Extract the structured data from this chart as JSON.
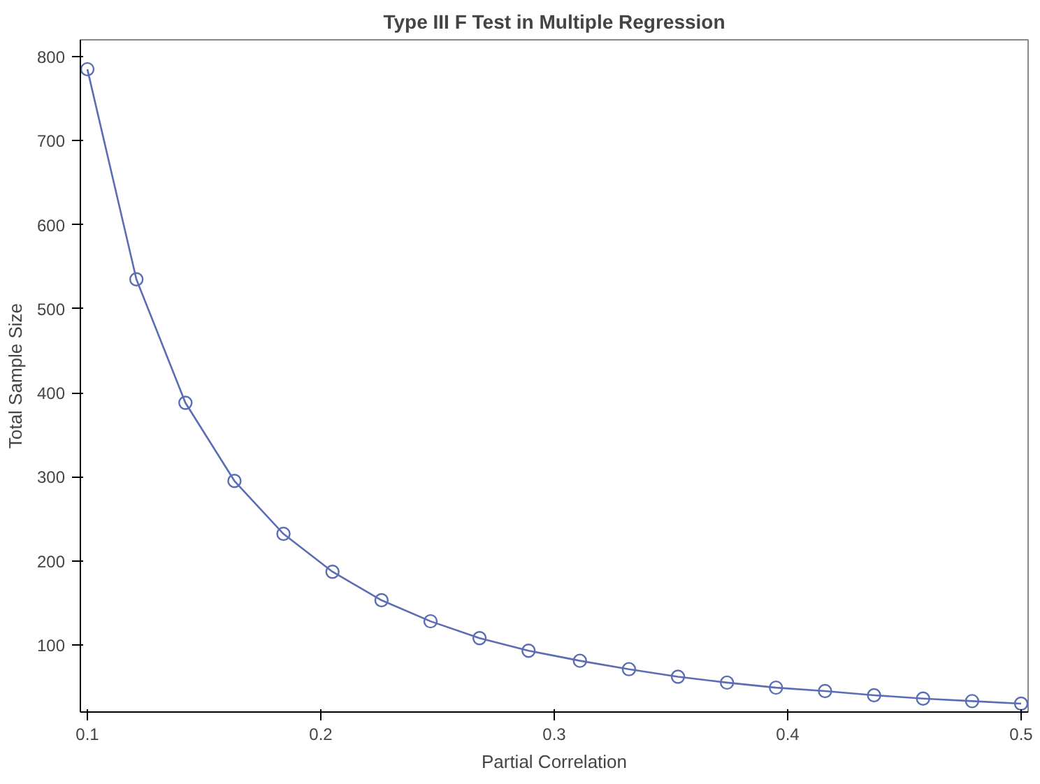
{
  "chart_data": {
    "type": "line",
    "title": "Type III F Test in Multiple Regression",
    "xlabel": "Partial Correlation",
    "ylabel": "Total Sample Size",
    "x": [
      0.1,
      0.121,
      0.142,
      0.163,
      0.184,
      0.205,
      0.226,
      0.247,
      0.268,
      0.289,
      0.311,
      0.332,
      0.353,
      0.374,
      0.395,
      0.416,
      0.437,
      0.458,
      0.479,
      0.5
    ],
    "series": [
      {
        "color": "#5b6db3",
        "values": [
          785,
          535,
          388,
          295,
          232,
          187,
          153,
          128,
          108,
          93,
          81,
          71,
          62,
          55,
          49,
          45,
          40,
          36,
          33,
          30
        ]
      }
    ],
    "xlim": [
      0.097,
      0.503
    ],
    "xticks": [
      0.1,
      0.2,
      0.3,
      0.4,
      0.5
    ],
    "ylim": [
      20,
      820
    ],
    "yticks": [
      100,
      200,
      300,
      400,
      500,
      600,
      700,
      800
    ],
    "grid": false,
    "marker": "circle",
    "line_style": "solid"
  }
}
